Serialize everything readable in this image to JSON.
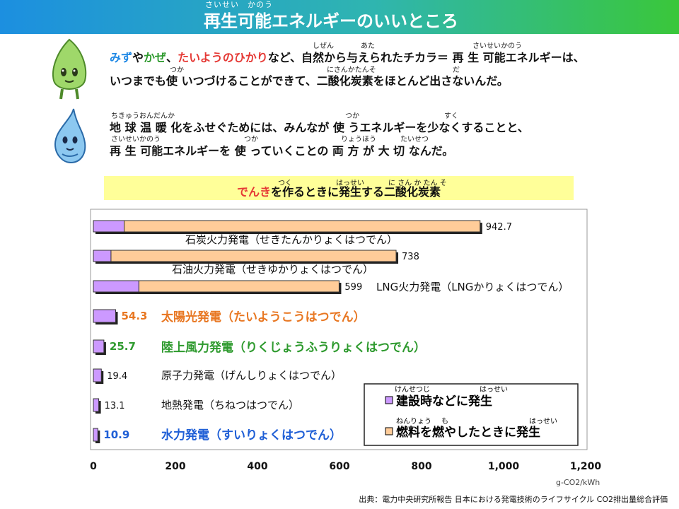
{
  "page": {
    "title": "再生可能エネルギーのいいところ",
    "title_ruby": "さいせい　かのう"
  },
  "intro": {
    "line1": {
      "water": "みず",
      "ya": "や",
      "wind": "かぜ",
      "sep": "、",
      "sun": "たいようのひかり",
      "rest": "など、自然から与えられたチカラ＝ 再 生 可能エネルギーは、"
    },
    "line2": "いつまでも使 いつづけることができて、二酸化炭素をほとんど出さないんだ。",
    "line3": "地 球 温 暖 化をふせぐためには、みんなが 使 うエネルギーを少なくすることと、",
    "line4": "再 生 可能エネルギーを 使 っていくことの 両 方 が 大 切 なんだ。",
    "rubies": {
      "shizen": "しぜん",
      "ata": "あた",
      "saisei1": "さいせいかのう",
      "tsuka1": "つか",
      "nisanka": "にさんかたんそ",
      "da": "だ",
      "chikyu": "ちきゅうおんだんか",
      "tsuka2": "つか",
      "suku": "すく",
      "saisei2": "さいせいかのう",
      "tsuka3": "つか",
      "ryoho": "りょうほう",
      "taisetsu": "たいせつ"
    }
  },
  "banner": {
    "prefix": "でんき",
    "rest": "を作るときに発生する二酸化炭素",
    "ruby_tsuku": "つく",
    "ruby_hassei": "はっせい",
    "ruby_nisanka": "に さん か たん そ"
  },
  "colors": {
    "construction": "#cc99ff",
    "fuel": "#ffcc99",
    "solar": "#e87722",
    "wind": "#2e9a2e",
    "hydro": "#1f5fd6"
  },
  "chart_data": {
    "type": "bar",
    "orientation": "horizontal",
    "stacked": true,
    "categories": [
      "石炭火力発電（せきたんかりょくはつでん）",
      "石油火力発電（せきゆかりょくはつでん）",
      "LNG火力発電（LNGかりょくはつでん）",
      "太陽光発電（たいようこうはつでん）",
      "陸上風力発電（りくじょうふうりょくはつでん）",
      "原子力発電（げんしりょくはつでん）",
      "地熱発電（ちねつはつでん）",
      "水力発電（すいりょくはつでん）"
    ],
    "totals": [
      "942.7",
      "738",
      "599",
      "54.3",
      "25.7",
      "19.4",
      "13.1",
      "10.9"
    ],
    "series": [
      {
        "name": "建設時などに発生",
        "values": [
          75,
          43,
          111,
          54.3,
          25.7,
          19.4,
          13.1,
          10.9
        ]
      },
      {
        "name": "燃料を燃やしたときに発生",
        "values": [
          867.7,
          695,
          488,
          0,
          0,
          0,
          0,
          0
        ]
      }
    ],
    "xticks": [
      "0",
      "200",
      "400",
      "600",
      "800",
      "1,000",
      "1,200"
    ],
    "xlim": [
      0,
      1200
    ],
    "unit": "g-CO2/kWh",
    "legend_ruby": [
      "けんせつじ",
      "はっせい",
      "ねんりょう",
      "も",
      "はっせい"
    ],
    "legend_position": "bottom-right",
    "grid": false
  },
  "source": "出典：電力中央研究所報告 日本における発電技術のライフサイクル CO2排出量総合評価"
}
